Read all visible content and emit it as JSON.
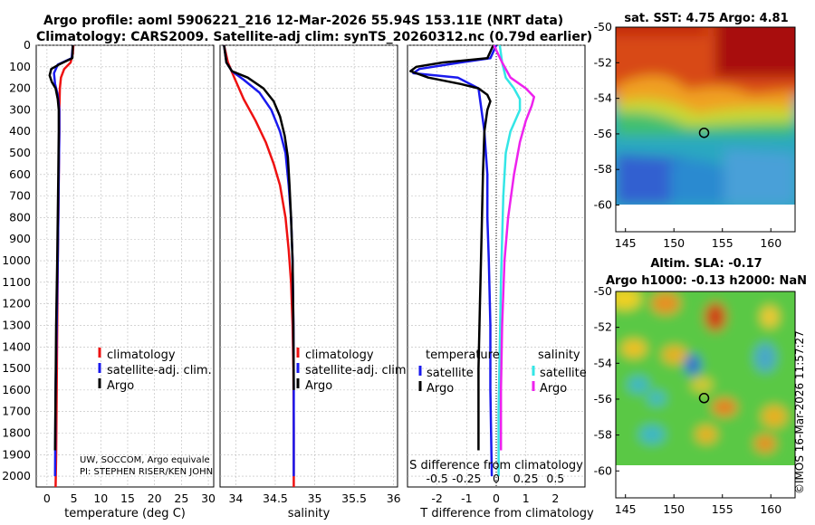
{
  "header": {
    "title_line1": "Argo profile: aoml 5906221_216 12-Mar-2026 55.94S 153.11E (NRT data)",
    "title_line2": "Climatology: CARS2009. Satellite-adj clim: synTS_20260312.nc (0.79d earlier)"
  },
  "watermark": "©IMOS 16-Mar-2026 11:57:27",
  "colors": {
    "climatology": "#ee1111",
    "satellite": "#1a1aee",
    "argo": "#000000",
    "sat_sal": "#33e6e6",
    "argo_sal": "#ee22ee"
  },
  "chart_data": [
    {
      "type": "line",
      "name": "temperature",
      "xlabel": "temperature (deg C)",
      "ylabel": "",
      "xlim": [
        -2,
        31
      ],
      "ylim": [
        2050,
        0
      ],
      "xticks": [
        0,
        5,
        10,
        15,
        20,
        25,
        30
      ],
      "yticks": [
        0,
        100,
        200,
        300,
        400,
        500,
        600,
        700,
        800,
        900,
        1000,
        1100,
        1200,
        1300,
        1400,
        1500,
        1600,
        1700,
        1800,
        1900,
        2000
      ],
      "series": [
        {
          "name": "climatology",
          "color": "#ee1111",
          "x": [
            4.9,
            4.8,
            4.4,
            3.2,
            2.6,
            2.4,
            2.3,
            2.3,
            2.2,
            2.1,
            2.0,
            1.9,
            1.8,
            1.7,
            1.6
          ],
          "y": [
            0,
            40,
            80,
            110,
            150,
            200,
            300,
            400,
            600,
            800,
            1000,
            1300,
            1600,
            1900,
            2050
          ]
        },
        {
          "name": "satellite-adj. clim.",
          "color": "#1a1aee",
          "x": [
            4.8,
            4.6,
            2.0,
            1.3,
            1.5,
            2.0,
            2.3,
            2.3,
            2.2,
            2.1,
            2.0,
            1.8,
            1.6,
            1.5
          ],
          "y": [
            0,
            60,
            90,
            130,
            180,
            230,
            300,
            400,
            600,
            800,
            1000,
            1300,
            1600,
            2000
          ]
        },
        {
          "name": "Argo",
          "color": "#000000",
          "x": [
            4.8,
            4.7,
            2.2,
            0.8,
            0.5,
            0.9,
            1.6,
            2.0,
            2.2,
            2.2,
            2.1,
            2.0,
            1.9,
            1.7,
            1.6,
            1.5
          ],
          "y": [
            0,
            60,
            90,
            110,
            140,
            170,
            200,
            250,
            300,
            400,
            600,
            800,
            1000,
            1300,
            1600,
            1880
          ]
        }
      ],
      "legend": [
        "climatology",
        "satellite-adj. clim.",
        "Argo"
      ],
      "annotation_line1": "UW, SOCCOM, Argo equivale",
      "annotation_line2": "PI: STEPHEN RISER/KEN JOHN"
    },
    {
      "type": "line",
      "name": "salinity",
      "xlabel": "salinity",
      "ylabel": "",
      "xlim": [
        33.8,
        36.05
      ],
      "ylim": [
        2050,
        0
      ],
      "xticks": [
        34,
        34.5,
        35,
        35.5,
        36
      ],
      "series": [
        {
          "name": "climatology",
          "color": "#ee1111",
          "x": [
            33.85,
            33.9,
            33.98,
            34.1,
            34.25,
            34.38,
            34.48,
            34.56,
            34.63,
            34.67,
            34.7,
            34.72,
            34.73,
            34.735,
            34.735
          ],
          "y": [
            0,
            80,
            150,
            250,
            350,
            450,
            550,
            650,
            800,
            950,
            1100,
            1300,
            1500,
            1800,
            2050
          ]
        },
        {
          "name": "satellite-adj. clim.",
          "color": "#1a1aee",
          "x": [
            33.85,
            33.88,
            33.95,
            34.1,
            34.3,
            34.45,
            34.56,
            34.63,
            34.67,
            34.7,
            34.72,
            34.73,
            34.735,
            34.735
          ],
          "y": [
            0,
            80,
            120,
            160,
            220,
            300,
            400,
            500,
            650,
            800,
            1000,
            1300,
            1600,
            2000
          ]
        },
        {
          "name": "Argo",
          "color": "#000000",
          "x": [
            33.85,
            33.88,
            33.95,
            34.15,
            34.35,
            34.48,
            34.56,
            34.62,
            34.66,
            34.68,
            34.7,
            34.72,
            34.73,
            34.735
          ],
          "y": [
            0,
            80,
            120,
            150,
            200,
            260,
            330,
            420,
            520,
            650,
            800,
            1000,
            1300,
            1600
          ]
        }
      ],
      "legend": [
        "climatology",
        "satellite-adj. clim.",
        "Argo"
      ]
    },
    {
      "type": "line",
      "name": "differences",
      "xlabel": "T difference from climatology",
      "xlabel_top": "S difference from climatology",
      "xlim": [
        -3,
        3
      ],
      "ylim": [
        2050,
        0
      ],
      "xticks": [
        -2,
        -1,
        0,
        1,
        2
      ],
      "xticks_top": [
        -0.5,
        -0.25,
        0,
        0.25,
        0.5
      ],
      "series": [
        {
          "name": "satellite T",
          "color": "#1a1aee",
          "x": [
            0,
            -0.2,
            -1.2,
            -2.6,
            -2.8,
            -1.3,
            -0.6,
            -0.5,
            -0.4,
            -0.3,
            -0.3,
            -0.25,
            -0.2,
            -0.2,
            -0.15
          ],
          "y": [
            0,
            60,
            80,
            110,
            130,
            150,
            200,
            300,
            400,
            600,
            800,
            1000,
            1300,
            1600,
            2000
          ]
        },
        {
          "name": "Argo T",
          "color": "#000000",
          "x": [
            -0.1,
            -0.3,
            -1.8,
            -2.7,
            -2.9,
            -2.3,
            -1.2,
            -0.6,
            -0.3,
            -0.2,
            -0.3,
            -0.4,
            -0.45,
            -0.5,
            -0.55,
            -0.6,
            -0.6,
            -0.6
          ],
          "y": [
            0,
            60,
            80,
            100,
            120,
            150,
            180,
            200,
            230,
            260,
            300,
            400,
            600,
            900,
            1200,
            1500,
            1700,
            1880
          ]
        },
        {
          "name": "satellite S",
          "color": "#33e6e6",
          "x": [
            0.03,
            0.05,
            0.08,
            0.15,
            0.2,
            0.2,
            0.12,
            0.08,
            0.06,
            0.05,
            0.04,
            0.03,
            0.02,
            0.02
          ],
          "y": [
            0,
            80,
            150,
            200,
            250,
            300,
            400,
            500,
            700,
            900,
            1100,
            1400,
            1700,
            2000
          ]
        },
        {
          "name": "Argo S",
          "color": "#ee22ee",
          "x": [
            -0.02,
            0.05,
            0.12,
            0.25,
            0.32,
            0.3,
            0.25,
            0.2,
            0.15,
            0.1,
            0.07,
            0.05,
            0.04,
            0.04
          ],
          "y": [
            0,
            80,
            150,
            200,
            240,
            280,
            350,
            450,
            600,
            800,
            1000,
            1300,
            1600,
            1880
          ]
        }
      ],
      "legend_temperature_title": "temperature",
      "legend_salinity_title": "salinity",
      "legend": [
        "satellite",
        "Argo",
        "satellite",
        "Argo"
      ]
    },
    {
      "type": "heatmap",
      "name": "sst_map",
      "title": "sat. SST: 4.75 Argo: 4.81",
      "xlim": [
        144,
        162.5
      ],
      "ylim": [
        -61.5,
        -50
      ],
      "xticks": [
        145,
        150,
        155,
        160
      ],
      "yticks": [
        -50,
        -52,
        -54,
        -56,
        -58,
        -60
      ],
      "marker": [
        153.11,
        -55.94
      ]
    },
    {
      "type": "heatmap",
      "name": "sla_map",
      "title_line1": "Altim. SLA: -0.17",
      "title_line2": "Argo h1000: -0.13 h2000: NaN",
      "xlim": [
        144,
        162.5
      ],
      "ylim": [
        -61.5,
        -50
      ],
      "xticks": [
        145,
        150,
        155,
        160
      ],
      "yticks": [
        -50,
        -52,
        -54,
        -56,
        -58,
        -60
      ],
      "marker": [
        153.11,
        -55.94
      ]
    }
  ]
}
